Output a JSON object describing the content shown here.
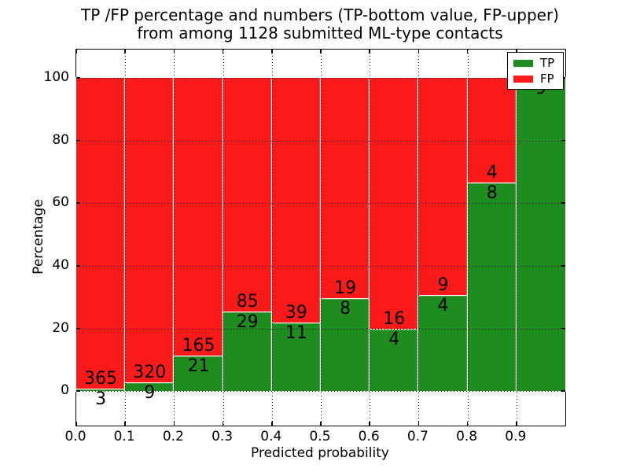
{
  "figure": {
    "title_line1": "TP /FP percentage and numbers (TP-bottom value, FP-upper)",
    "title_line2": "from among 1128 submitted ML-type contacts"
  },
  "colors": {
    "tp": "#1f8c1f",
    "fp": "#fa1a1a",
    "grid": "#000000",
    "axis": "#000000",
    "background": "#ffffff"
  },
  "chart_data": {
    "type": "bar",
    "subtype": "stacked-percentage",
    "title": "TP /FP percentage and numbers (TP-bottom value, FP-upper) from among 1128 submitted ML-type contacts",
    "xlabel": "Predicted probability",
    "ylabel": "Percentage",
    "total_contacts": 1128,
    "xlim": [
      0.0,
      1.0
    ],
    "ylim": [
      -11,
      109
    ],
    "grid": "dotted, drawn above bars",
    "x_tick_labels": [
      "0.0",
      "0.1",
      "0.2",
      "0.3",
      "0.4",
      "0.5",
      "0.6",
      "0.7",
      "0.8",
      "0.9"
    ],
    "y_ticks": [
      0,
      20,
      40,
      60,
      80,
      100
    ],
    "y_tick_labels": [
      "0",
      "20",
      "40",
      "60",
      "80",
      "100"
    ],
    "bin_edges": [
      0.0,
      0.1,
      0.2,
      0.3,
      0.4,
      0.5,
      0.6,
      0.7,
      0.8,
      0.9,
      1.0
    ],
    "bars_note": "each bar normalized to 100%, TP (green) on bottom, FP (red) on top; labels show raw counts",
    "series": [
      {
        "name": "TP",
        "color": "#1f8c1f",
        "counts": [
          3,
          9,
          21,
          29,
          11,
          8,
          4,
          4,
          8,
          9
        ]
      },
      {
        "name": "FP",
        "color": "#fa1a1a",
        "counts": [
          365,
          320,
          165,
          85,
          39,
          19,
          16,
          9,
          4,
          0
        ]
      }
    ],
    "legend": {
      "position": "upper right",
      "entries": [
        {
          "label": "TP",
          "color": "#1f8c1f"
        },
        {
          "label": "FP",
          "color": "#fa1a1a"
        }
      ]
    }
  }
}
